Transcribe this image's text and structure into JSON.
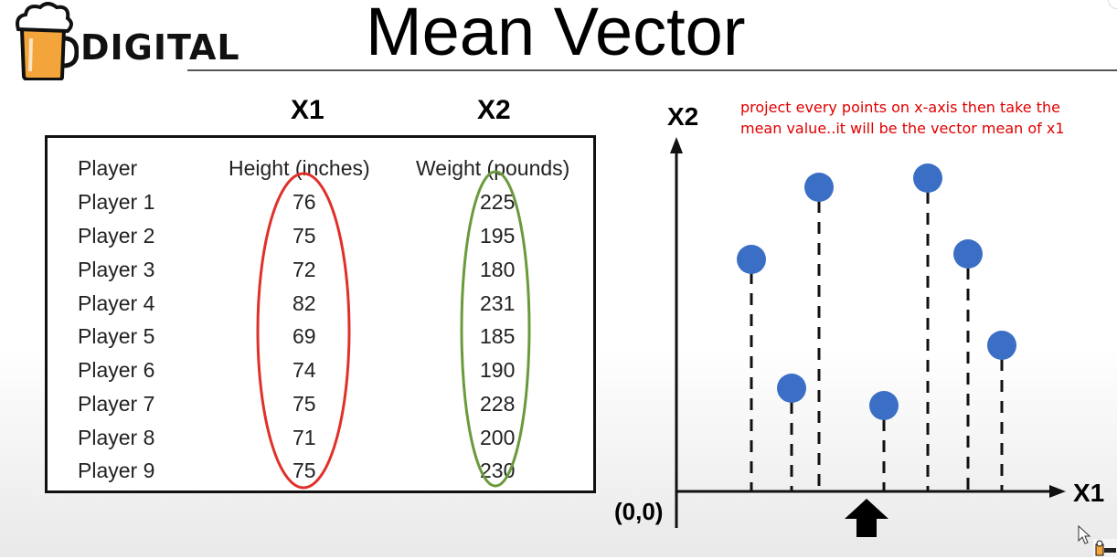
{
  "header": {
    "logo_text": "DIGITAL",
    "title": "Mean Vector"
  },
  "columns": {
    "x1": "X1",
    "x2": "X2"
  },
  "table": {
    "headers": [
      "Player",
      "Height (inches)",
      "Weight (pounds)"
    ],
    "rows": [
      [
        "Player 1",
        "76",
        "225"
      ],
      [
        "Player 2",
        "75",
        "195"
      ],
      [
        "Player 3",
        "72",
        "180"
      ],
      [
        "Player 4",
        "82",
        "231"
      ],
      [
        "Player 5",
        "69",
        "185"
      ],
      [
        "Player 6",
        "74",
        "190"
      ],
      [
        "Player 7",
        "75",
        "228"
      ],
      [
        "Player 8",
        "71",
        "200"
      ],
      [
        "Player 9",
        "75",
        "230"
      ]
    ]
  },
  "plot": {
    "y_axis_label": "X2",
    "x_axis_label": "X1",
    "origin_label": "(0,0)",
    "annotation": "project every points on x-axis then take the mean value..it will be the vector mean of x1",
    "colors": {
      "point": "#3b6fc6",
      "x1_ellipse": "#e0302a",
      "x2_ellipse": "#6a9a3c",
      "annotation": "#e00000"
    }
  }
}
